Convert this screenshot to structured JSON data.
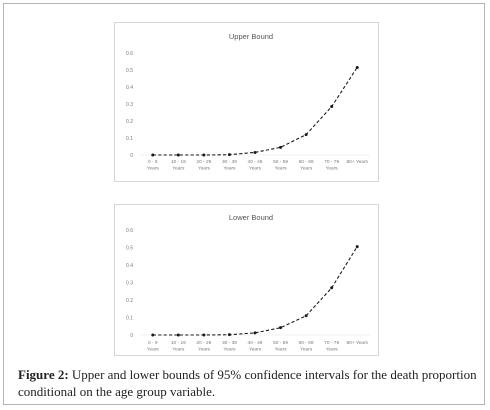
{
  "chart_data": [
    {
      "type": "line",
      "title": "Upper Bound",
      "categories": [
        "0 - 9 Years",
        "10 - 19 Years",
        "20 - 29 Years",
        "30 - 39 Years",
        "40 - 49 Years",
        "50 - 59 Years",
        "60 - 69 Years",
        "70 - 79 Years",
        "80+ Years"
      ],
      "category_lines": [
        [
          "0 - 9",
          "Years"
        ],
        [
          "10 - 19",
          "Years"
        ],
        [
          "20 - 29",
          "Years"
        ],
        [
          "30 - 39",
          "Years"
        ],
        [
          "40 - 49",
          "Years"
        ],
        [
          "50 - 59",
          "Years"
        ],
        [
          "60 - 69",
          "Years"
        ],
        [
          "70 - 79",
          "Years"
        ],
        [
          "80+ Years",
          ""
        ]
      ],
      "series": [
        {
          "values": [
            0.0,
            0.0,
            0.0,
            0.002,
            0.015,
            0.045,
            0.12,
            0.285,
            0.515
          ],
          "style": "dashed",
          "markers": true
        }
      ],
      "yticks": [
        "0",
        "0.1",
        "0.2",
        "0.3",
        "0.4",
        "0.5",
        "0.6"
      ],
      "ylim": [
        0,
        0.6
      ],
      "grid": false,
      "line_color": "#1a1a1a"
    },
    {
      "type": "line",
      "title": "Lower Bound",
      "categories": [
        "0 - 9 Years",
        "10 - 19 Years",
        "20 - 29 Years",
        "30 - 39 Years",
        "40 - 49 Years",
        "50 - 59 Years",
        "60 - 69 Years",
        "70 - 79 Years",
        "80+ Years"
      ],
      "category_lines": [
        [
          "0 - 9",
          "Years"
        ],
        [
          "10 - 19",
          "Years"
        ],
        [
          "20 - 29",
          "Years"
        ],
        [
          "30 - 39",
          "Years"
        ],
        [
          "40 - 49",
          "Years"
        ],
        [
          "50 - 59",
          "Years"
        ],
        [
          "60 - 69",
          "Years"
        ],
        [
          "70 - 79",
          "Years"
        ],
        [
          "80+ Years",
          ""
        ]
      ],
      "series": [
        {
          "values": [
            0.0,
            0.0,
            0.0,
            0.002,
            0.012,
            0.042,
            0.11,
            0.27,
            0.505
          ],
          "style": "dashed",
          "markers": true
        }
      ],
      "yticks": [
        "0",
        "0.1",
        "0.2",
        "0.3",
        "0.4",
        "0.5",
        "0.6"
      ],
      "ylim": [
        0,
        0.6
      ],
      "grid": false,
      "line_color": "#1a1a1a"
    }
  ],
  "caption": {
    "label": "Figure 2:",
    "text": " Upper and lower bounds of 95% confidence intervals for the death proportion conditional on the age group variable."
  }
}
